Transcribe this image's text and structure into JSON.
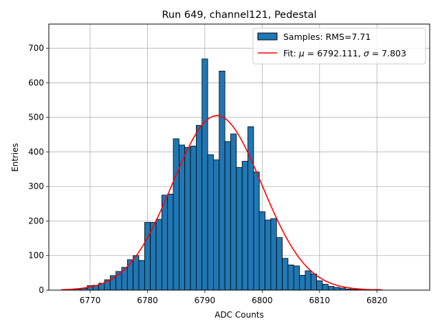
{
  "chart_data": {
    "type": "bar",
    "title": "Run 649, channel121, Pedestal",
    "xlabel": "ADC Counts",
    "ylabel": "Entries",
    "xlim": [
      6762.8,
      6829.2
    ],
    "ylim": [
      0,
      770
    ],
    "xticks": [
      6770,
      6780,
      6790,
      6800,
      6810,
      6820
    ],
    "yticks": [
      0,
      100,
      200,
      300,
      400,
      500,
      600,
      700
    ],
    "grid": true,
    "legend_position": "top-right",
    "bin_width": 1,
    "histogram": {
      "name": "Samples: RMS=7.71",
      "color": "#1f77b4",
      "edgecolor": "#000000",
      "x": [
        6766,
        6767,
        6768,
        6769,
        6770,
        6771,
        6772,
        6773,
        6774,
        6775,
        6776,
        6777,
        6778,
        6779,
        6780,
        6781,
        6782,
        6783,
        6784,
        6785,
        6786,
        6787,
        6788,
        6789,
        6790,
        6791,
        6792,
        6793,
        6794,
        6795,
        6796,
        6797,
        6798,
        6799,
        6800,
        6801,
        6802,
        6803,
        6804,
        6805,
        6806,
        6807,
        6808,
        6809,
        6810,
        6811,
        6812,
        6813,
        6814,
        6815,
        6816,
        6817,
        6818,
        6819,
        6820
      ],
      "values": [
        1,
        2,
        3,
        5,
        13,
        14,
        20,
        30,
        42,
        54,
        66,
        88,
        100,
        86,
        196,
        196,
        205,
        275,
        278,
        438,
        420,
        413,
        417,
        477,
        669,
        392,
        377,
        634,
        430,
        452,
        355,
        373,
        473,
        342,
        227,
        203,
        207,
        152,
        92,
        73,
        70,
        43,
        56,
        47,
        27,
        17,
        11,
        8,
        6,
        3,
        2,
        1,
        1,
        1,
        2
      ]
    },
    "fit": {
      "name": "Fit: μ = 6792.111, σ = 7.803",
      "name_prefix": "Fit: ",
      "name_mu": "μ",
      "name_mid": " = 6792.111, ",
      "name_sigma": "σ",
      "name_suffix": " = 7.803",
      "color": "#ff0000",
      "mu": 6792.111,
      "sigma": 7.803,
      "amplitude": 505,
      "x_range": [
        6765,
        6821
      ]
    }
  }
}
